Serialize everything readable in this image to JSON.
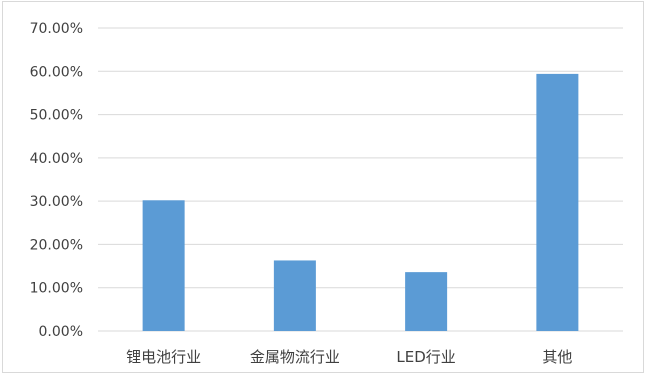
{
  "chart_data": {
    "type": "bar",
    "categories": [
      "锂电池行业",
      "金属物流行业",
      "LED行业",
      "其他"
    ],
    "values": [
      30.2,
      16.3,
      13.6,
      59.4
    ],
    "ylim": [
      0,
      70
    ],
    "yticks": [
      "0.00%",
      "10.00%",
      "20.00%",
      "30.00%",
      "40.00%",
      "50.00%",
      "60.00%",
      "70.00%"
    ],
    "grid": true,
    "bar_color": "#5b9bd5",
    "grid_color": "#d9d9d9",
    "title": "",
    "xlabel": "",
    "ylabel": ""
  }
}
